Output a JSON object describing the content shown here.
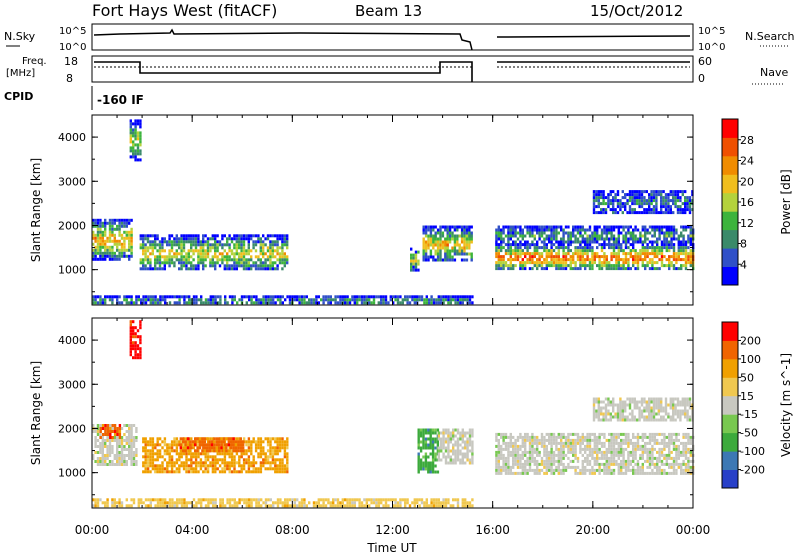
{
  "header": {
    "station": "Fort Hays West (fitACF)",
    "beam": "Beam 13",
    "date": "15/Oct/2012"
  },
  "strip_labels": {
    "nsky": "N.Sky",
    "nsearch": "N.Search",
    "freq_line1": "Freq.",
    "freq_line2": "[MHz]",
    "nave": "Nave",
    "cpid": "CPID",
    "cpid_value": "-160 IF",
    "noise_ticks": [
      "10^5",
      "10^0"
    ],
    "freq_ticks": [
      "18",
      "8"
    ],
    "nave_ticks": [
      "60",
      "0"
    ]
  },
  "time_axis": {
    "label": "Time UT",
    "ticks": [
      "00:00",
      "04:00",
      "08:00",
      "12:00",
      "16:00",
      "20:00",
      "00:00"
    ],
    "range_hours": [
      0,
      24
    ],
    "data_gap_hours": [
      15.3,
      16.0
    ]
  },
  "chart_data": [
    {
      "type": "heatmap",
      "name": "power-panel",
      "ylabel": "Slant Range [km]",
      "yticks": [
        "1000",
        "2000",
        "3000",
        "4000"
      ],
      "ylim": [
        200,
        4500
      ],
      "colorbar_label": "Power [dB]",
      "colorbar_ticks": [
        "28",
        "24",
        "20",
        "16",
        "12",
        "8",
        "4"
      ],
      "colors": [
        "#0000ff",
        "#3050c8",
        "#3a8a6a",
        "#3cb43c",
        "#b4d23c",
        "#f0be1e",
        "#f08c00",
        "#f05000",
        "#ff0000"
      ],
      "regions": [
        {
          "t0": 0.0,
          "t1": 1.6,
          "r0": 1250,
          "r1": 2150,
          "peak": 0.75
        },
        {
          "t0": 1.5,
          "t1": 1.9,
          "r0": 3500,
          "r1": 4400,
          "peak": 0.5
        },
        {
          "t0": 1.9,
          "t1": 7.8,
          "r0": 1000,
          "r1": 1800,
          "peak": 0.6
        },
        {
          "t0": 0.0,
          "t1": 15.2,
          "r0": 220,
          "r1": 420,
          "peak": 0.3
        },
        {
          "t0": 12.7,
          "t1": 13.0,
          "r0": 1000,
          "r1": 1500,
          "peak": 0.55
        },
        {
          "t0": 13.2,
          "t1": 15.2,
          "r0": 1200,
          "r1": 2000,
          "peak": 0.7
        },
        {
          "t0": 16.1,
          "t1": 24.0,
          "r0": 1000,
          "r1": 1600,
          "peak": 0.9
        },
        {
          "t0": 16.1,
          "t1": 24.0,
          "r0": 1600,
          "r1": 2000,
          "peak": 0.3
        },
        {
          "t0": 20.0,
          "t1": 24.0,
          "r0": 2300,
          "r1": 2800,
          "peak": 0.2
        }
      ]
    },
    {
      "type": "heatmap",
      "name": "velocity-panel",
      "ylabel": "Slant Range [km]",
      "yticks": [
        "1000",
        "2000",
        "3000",
        "4000"
      ],
      "ylim": [
        200,
        4500
      ],
      "colorbar_label": "Velocity [m s^-1]",
      "colorbar_ticks": [
        "200",
        "100",
        "50",
        "15",
        "-15",
        "-50",
        "-100",
        "-200"
      ],
      "colors": [
        "#2840c8",
        "#3c78b4",
        "#3caa3c",
        "#78c850",
        "#c8c8c0",
        "#f0c850",
        "#f0a000",
        "#f06400",
        "#ff0000"
      ],
      "regions": [
        {
          "t0": 0.0,
          "t1": 1.8,
          "r0": 1200,
          "r1": 2100,
          "v": 4
        },
        {
          "t0": 0.3,
          "t1": 1.1,
          "r0": 1800,
          "r1": 2100,
          "v": 7
        },
        {
          "t0": 1.5,
          "t1": 1.9,
          "r0": 3600,
          "r1": 4450,
          "v": 8
        },
        {
          "t0": 2.0,
          "t1": 7.8,
          "r0": 1000,
          "r1": 1800,
          "v": 6
        },
        {
          "t0": 3.5,
          "t1": 6.0,
          "r0": 1500,
          "r1": 1800,
          "v": 7
        },
        {
          "t0": 0.0,
          "t1": 15.2,
          "r0": 220,
          "r1": 420,
          "v": 5
        },
        {
          "t0": 13.0,
          "t1": 13.8,
          "r0": 1000,
          "r1": 2000,
          "v": 2
        },
        {
          "t0": 13.8,
          "t1": 15.2,
          "r0": 1200,
          "r1": 2000,
          "v": 4
        },
        {
          "t0": 16.1,
          "t1": 24.0,
          "r0": 950,
          "r1": 1900,
          "v": 4
        },
        {
          "t0": 20.0,
          "t1": 24.0,
          "r0": 2200,
          "r1": 2700,
          "v": 4
        }
      ]
    }
  ]
}
